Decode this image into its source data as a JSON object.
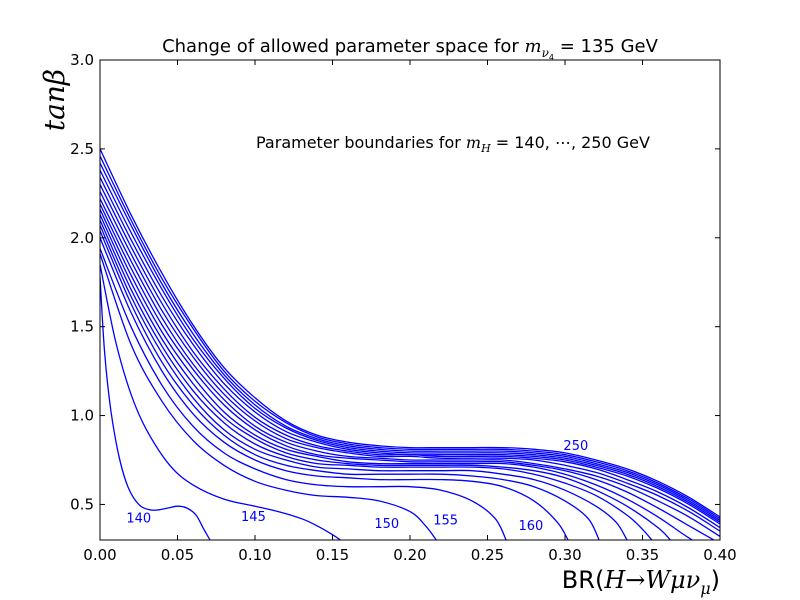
{
  "chart_data": {
    "type": "line",
    "title": {
      "prefix": "Change of allowed parameter space for ",
      "sym": "m",
      "sub": "ν",
      "subsub": "4",
      "suffix": " = 135 GeV"
    },
    "annotation": {
      "prefix": "Parameter boundaries for ",
      "sym": "m",
      "sub": "H",
      "suffix": " = 140, ⋯, 250 GeV"
    },
    "xlabel": {
      "prefix": "BR(",
      "expr": "H→Wμν",
      "sub": "μ",
      "suffix": ")"
    },
    "ylabel": "tanβ",
    "xlim": [
      0.0,
      0.4
    ],
    "ylim": [
      0.3,
      3.0
    ],
    "xticks": [
      "0.00",
      "0.05",
      "0.10",
      "0.15",
      "0.20",
      "0.25",
      "0.30",
      "0.35",
      "0.40"
    ],
    "yticks": [
      "0.5",
      "1.0",
      "1.5",
      "2.0",
      "2.5",
      "3.0"
    ],
    "grid": false,
    "line_color": "#0000ff",
    "curve_labels": [
      {
        "text": "140",
        "x": 0.025,
        "y": 0.42
      },
      {
        "text": "145",
        "x": 0.099,
        "y": 0.43
      },
      {
        "text": "150",
        "x": 0.185,
        "y": 0.39
      },
      {
        "text": "155",
        "x": 0.223,
        "y": 0.41
      },
      {
        "text": "160",
        "x": 0.278,
        "y": 0.38
      },
      {
        "text": "250",
        "x": 0.307,
        "y": 0.83
      }
    ],
    "series": [
      {
        "x": [
          0,
          0.003,
          0.007,
          0.012,
          0.018,
          0.025,
          0.032,
          0.038,
          0.044,
          0.05,
          0.056,
          0.062,
          0.067,
          0.071
        ],
        "y": [
          1.78,
          1.35,
          1.03,
          0.78,
          0.6,
          0.5,
          0.47,
          0.47,
          0.48,
          0.49,
          0.48,
          0.44,
          0.36,
          0.3
        ]
      },
      {
        "x": [
          0,
          0.01,
          0.02,
          0.03,
          0.045,
          0.06,
          0.08,
          0.1,
          0.115,
          0.13,
          0.14,
          0.15,
          0.155
        ],
        "y": [
          1.85,
          1.42,
          1.12,
          0.92,
          0.72,
          0.61,
          0.53,
          0.49,
          0.46,
          0.42,
          0.38,
          0.33,
          0.3
        ]
      },
      {
        "x": [
          0,
          0.02,
          0.04,
          0.06,
          0.08,
          0.1,
          0.12,
          0.14,
          0.16,
          0.18,
          0.2,
          0.21,
          0.217
        ],
        "y": [
          1.91,
          1.4,
          1.08,
          0.86,
          0.72,
          0.63,
          0.58,
          0.55,
          0.54,
          0.52,
          0.46,
          0.38,
          0.3
        ]
      },
      {
        "x": [
          0,
          0.02,
          0.04,
          0.06,
          0.08,
          0.1,
          0.12,
          0.14,
          0.16,
          0.18,
          0.2,
          0.22,
          0.24,
          0.255,
          0.262
        ],
        "y": [
          1.94,
          1.5,
          1.17,
          0.94,
          0.79,
          0.7,
          0.64,
          0.61,
          0.6,
          0.6,
          0.6,
          0.58,
          0.52,
          0.42,
          0.3
        ]
      },
      {
        "x": [
          0,
          0.02,
          0.04,
          0.06,
          0.08,
          0.1,
          0.12,
          0.14,
          0.16,
          0.18,
          0.2,
          0.22,
          0.24,
          0.26,
          0.28,
          0.295,
          0.302
        ],
        "y": [
          2.0,
          1.58,
          1.25,
          1.01,
          0.85,
          0.75,
          0.69,
          0.66,
          0.65,
          0.64,
          0.64,
          0.64,
          0.63,
          0.6,
          0.52,
          0.4,
          0.3
        ]
      },
      {
        "x": [
          0,
          0.02,
          0.04,
          0.06,
          0.08,
          0.1,
          0.12,
          0.14,
          0.16,
          0.18,
          0.2,
          0.22,
          0.24,
          0.26,
          0.28,
          0.3,
          0.315,
          0.322
        ],
        "y": [
          2.04,
          1.63,
          1.3,
          1.06,
          0.89,
          0.78,
          0.72,
          0.69,
          0.67,
          0.67,
          0.67,
          0.67,
          0.66,
          0.64,
          0.6,
          0.52,
          0.42,
          0.3
        ]
      },
      {
        "x": [
          0,
          0.02,
          0.04,
          0.06,
          0.08,
          0.1,
          0.12,
          0.14,
          0.16,
          0.18,
          0.2,
          0.22,
          0.24,
          0.26,
          0.28,
          0.3,
          0.32,
          0.333,
          0.34
        ],
        "y": [
          2.07,
          1.67,
          1.35,
          1.1,
          0.92,
          0.81,
          0.75,
          0.71,
          0.7,
          0.69,
          0.69,
          0.69,
          0.69,
          0.67,
          0.64,
          0.58,
          0.49,
          0.4,
          0.3
        ]
      },
      {
        "x": [
          0,
          0.02,
          0.04,
          0.06,
          0.08,
          0.1,
          0.12,
          0.14,
          0.16,
          0.18,
          0.2,
          0.22,
          0.24,
          0.26,
          0.28,
          0.3,
          0.32,
          0.34,
          0.35,
          0.356
        ],
        "y": [
          2.1,
          1.71,
          1.39,
          1.14,
          0.96,
          0.84,
          0.77,
          0.73,
          0.72,
          0.71,
          0.71,
          0.71,
          0.71,
          0.7,
          0.67,
          0.62,
          0.55,
          0.44,
          0.36,
          0.3
        ]
      },
      {
        "x": [
          0,
          0.02,
          0.04,
          0.06,
          0.08,
          0.1,
          0.12,
          0.14,
          0.16,
          0.18,
          0.2,
          0.22,
          0.24,
          0.26,
          0.28,
          0.3,
          0.32,
          0.34,
          0.36,
          0.368
        ],
        "y": [
          2.13,
          1.75,
          1.43,
          1.18,
          0.99,
          0.87,
          0.79,
          0.75,
          0.73,
          0.72,
          0.72,
          0.72,
          0.72,
          0.71,
          0.69,
          0.65,
          0.58,
          0.49,
          0.37,
          0.3
        ]
      },
      {
        "x": [
          0,
          0.02,
          0.04,
          0.06,
          0.08,
          0.1,
          0.12,
          0.14,
          0.16,
          0.18,
          0.2,
          0.22,
          0.24,
          0.26,
          0.28,
          0.3,
          0.32,
          0.34,
          0.36,
          0.375,
          0.382
        ],
        "y": [
          2.16,
          1.79,
          1.47,
          1.22,
          1.02,
          0.89,
          0.81,
          0.77,
          0.74,
          0.73,
          0.73,
          0.73,
          0.73,
          0.73,
          0.71,
          0.67,
          0.61,
          0.53,
          0.43,
          0.34,
          0.3
        ]
      },
      {
        "x": [
          0,
          0.02,
          0.04,
          0.06,
          0.08,
          0.1,
          0.12,
          0.14,
          0.16,
          0.18,
          0.2,
          0.22,
          0.24,
          0.26,
          0.28,
          0.3,
          0.32,
          0.34,
          0.36,
          0.38,
          0.39,
          0.396
        ],
        "y": [
          2.19,
          1.83,
          1.51,
          1.26,
          1.06,
          0.92,
          0.83,
          0.78,
          0.76,
          0.75,
          0.74,
          0.74,
          0.74,
          0.74,
          0.72,
          0.69,
          0.64,
          0.57,
          0.48,
          0.38,
          0.33,
          0.3
        ]
      },
      {
        "x": [
          0,
          0.02,
          0.04,
          0.06,
          0.08,
          0.1,
          0.12,
          0.14,
          0.16,
          0.18,
          0.2,
          0.22,
          0.24,
          0.26,
          0.28,
          0.3,
          0.32,
          0.34,
          0.36,
          0.38,
          0.4
        ],
        "y": [
          2.22,
          1.87,
          1.55,
          1.29,
          1.09,
          0.94,
          0.85,
          0.8,
          0.77,
          0.76,
          0.75,
          0.75,
          0.75,
          0.75,
          0.73,
          0.7,
          0.66,
          0.6,
          0.52,
          0.43,
          0.32
        ]
      },
      {
        "x": [
          0,
          0.02,
          0.04,
          0.06,
          0.08,
          0.1,
          0.12,
          0.14,
          0.16,
          0.18,
          0.2,
          0.22,
          0.24,
          0.26,
          0.28,
          0.3,
          0.32,
          0.34,
          0.36,
          0.38,
          0.4
        ],
        "y": [
          2.26,
          1.91,
          1.59,
          1.33,
          1.12,
          0.97,
          0.87,
          0.82,
          0.79,
          0.77,
          0.77,
          0.76,
          0.76,
          0.76,
          0.75,
          0.72,
          0.68,
          0.62,
          0.55,
          0.46,
          0.35
        ]
      },
      {
        "x": [
          0,
          0.02,
          0.04,
          0.06,
          0.08,
          0.1,
          0.12,
          0.14,
          0.16,
          0.18,
          0.2,
          0.22,
          0.24,
          0.26,
          0.28,
          0.3,
          0.32,
          0.34,
          0.36,
          0.38,
          0.4
        ],
        "y": [
          2.3,
          1.95,
          1.63,
          1.36,
          1.15,
          0.99,
          0.89,
          0.83,
          0.8,
          0.78,
          0.78,
          0.77,
          0.77,
          0.77,
          0.76,
          0.74,
          0.7,
          0.64,
          0.57,
          0.48,
          0.37
        ]
      },
      {
        "x": [
          0,
          0.02,
          0.04,
          0.06,
          0.08,
          0.1,
          0.12,
          0.14,
          0.16,
          0.18,
          0.2,
          0.22,
          0.24,
          0.26,
          0.28,
          0.3,
          0.32,
          0.34,
          0.36,
          0.38,
          0.4
        ],
        "y": [
          2.34,
          1.99,
          1.67,
          1.4,
          1.18,
          1.02,
          0.91,
          0.85,
          0.81,
          0.79,
          0.78,
          0.78,
          0.78,
          0.78,
          0.77,
          0.75,
          0.71,
          0.66,
          0.59,
          0.5,
          0.39
        ]
      },
      {
        "x": [
          0,
          0.02,
          0.04,
          0.06,
          0.08,
          0.1,
          0.12,
          0.14,
          0.16,
          0.18,
          0.2,
          0.22,
          0.24,
          0.26,
          0.28,
          0.3,
          0.32,
          0.34,
          0.36,
          0.38,
          0.4
        ],
        "y": [
          2.38,
          2.03,
          1.71,
          1.43,
          1.21,
          1.04,
          0.93,
          0.86,
          0.82,
          0.8,
          0.79,
          0.79,
          0.79,
          0.79,
          0.78,
          0.76,
          0.72,
          0.67,
          0.6,
          0.51,
          0.4
        ]
      },
      {
        "x": [
          0,
          0.02,
          0.04,
          0.06,
          0.08,
          0.1,
          0.12,
          0.14,
          0.16,
          0.18,
          0.2,
          0.22,
          0.24,
          0.26,
          0.28,
          0.3,
          0.32,
          0.34,
          0.36,
          0.38,
          0.4
        ],
        "y": [
          2.42,
          2.07,
          1.74,
          1.46,
          1.23,
          1.06,
          0.94,
          0.87,
          0.83,
          0.81,
          0.8,
          0.8,
          0.8,
          0.8,
          0.79,
          0.77,
          0.73,
          0.68,
          0.61,
          0.52,
          0.41
        ]
      },
      {
        "x": [
          0,
          0.02,
          0.04,
          0.06,
          0.08,
          0.1,
          0.12,
          0.14,
          0.16,
          0.18,
          0.2,
          0.22,
          0.24,
          0.26,
          0.28,
          0.3,
          0.32,
          0.34,
          0.36,
          0.38,
          0.4
        ],
        "y": [
          2.46,
          2.1,
          1.77,
          1.49,
          1.25,
          1.08,
          0.96,
          0.88,
          0.84,
          0.82,
          0.81,
          0.81,
          0.81,
          0.81,
          0.8,
          0.78,
          0.74,
          0.69,
          0.62,
          0.53,
          0.42
        ]
      },
      {
        "x": [
          0,
          0.02,
          0.04,
          0.06,
          0.08,
          0.1,
          0.12,
          0.14,
          0.16,
          0.18,
          0.2,
          0.22,
          0.24,
          0.26,
          0.28,
          0.3,
          0.32,
          0.34,
          0.36,
          0.38,
          0.4
        ],
        "y": [
          2.5,
          2.13,
          1.8,
          1.51,
          1.27,
          1.1,
          0.97,
          0.89,
          0.85,
          0.83,
          0.82,
          0.82,
          0.82,
          0.82,
          0.81,
          0.79,
          0.75,
          0.7,
          0.63,
          0.54,
          0.43
        ]
      }
    ]
  }
}
